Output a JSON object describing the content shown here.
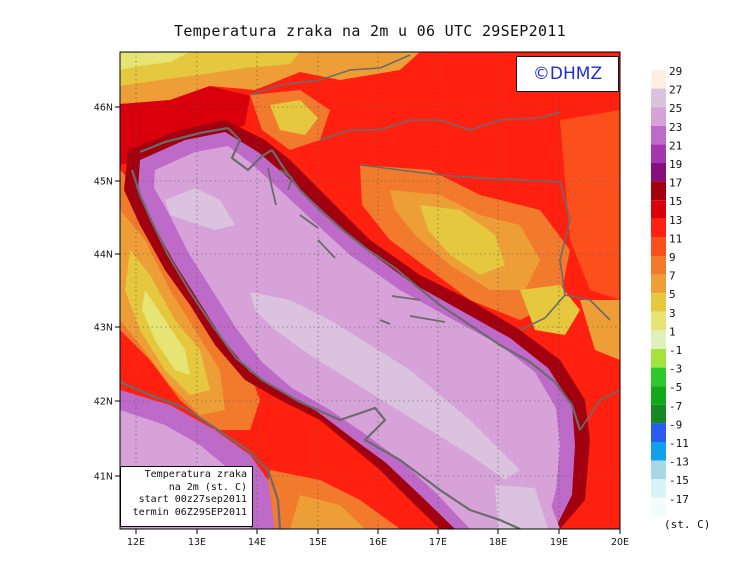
{
  "title": "Temperatura zraka na 2m u 06 UTC 29SEP2011",
  "brand": "©DHMZ",
  "info_box": {
    "line1": "Temperatura zraka",
    "line2": "na 2m (st. C)",
    "line3": "start 00z27sep2011",
    "line4": "termin 06Z29SEP2011"
  },
  "lon_ticks": [
    "12E",
    "13E",
    "14E",
    "15E",
    "16E",
    "17E",
    "18E",
    "19E",
    "20E"
  ],
  "lat_ticks": [
    "46N",
    "45N",
    "44N",
    "43N",
    "42N",
    "41N"
  ],
  "legend": {
    "unit": "(st. C)",
    "levels": [
      {
        "label": "29",
        "color": "#fdf0e2"
      },
      {
        "label": "27",
        "color": "#dbc2de"
      },
      {
        "label": "25",
        "color": "#d6a2d8"
      },
      {
        "label": "23",
        "color": "#be6ac8"
      },
      {
        "label": "21",
        "color": "#a437b0"
      },
      {
        "label": "19",
        "color": "#860f7c"
      },
      {
        "label": "17",
        "color": "#a2000e"
      },
      {
        "label": "15",
        "color": "#d9000c"
      },
      {
        "label": "13",
        "color": "#ff2010"
      },
      {
        "label": "11",
        "color": "#fb4f1c"
      },
      {
        "label": "9",
        "color": "#f27a2c"
      },
      {
        "label": "7",
        "color": "#ee9e36"
      },
      {
        "label": "5",
        "color": "#e6c83e"
      },
      {
        "label": "3",
        "color": "#e6e474"
      },
      {
        "label": "1",
        "color": "#dff0bc"
      },
      {
        "label": "-1",
        "color": "#a4e23c"
      },
      {
        "label": "-3",
        "color": "#2ec82c"
      },
      {
        "label": "-5",
        "color": "#11a81c"
      },
      {
        "label": "-7",
        "color": "#158a22"
      },
      {
        "label": "-9",
        "color": "#2a5cf0"
      },
      {
        "label": "-11",
        "color": "#12a0ea"
      },
      {
        "label": "-13",
        "color": "#a8d8e6"
      },
      {
        "label": "-15",
        "color": "#d8f4f8"
      },
      {
        "label": "-17",
        "color": "#f2fcfc"
      }
    ]
  },
  "colors": {
    "sea": "#d6a2d8",
    "sea_core": "#dbc2de",
    "coast_band": "#be6ac8",
    "coastline": "#6b6b6b"
  }
}
